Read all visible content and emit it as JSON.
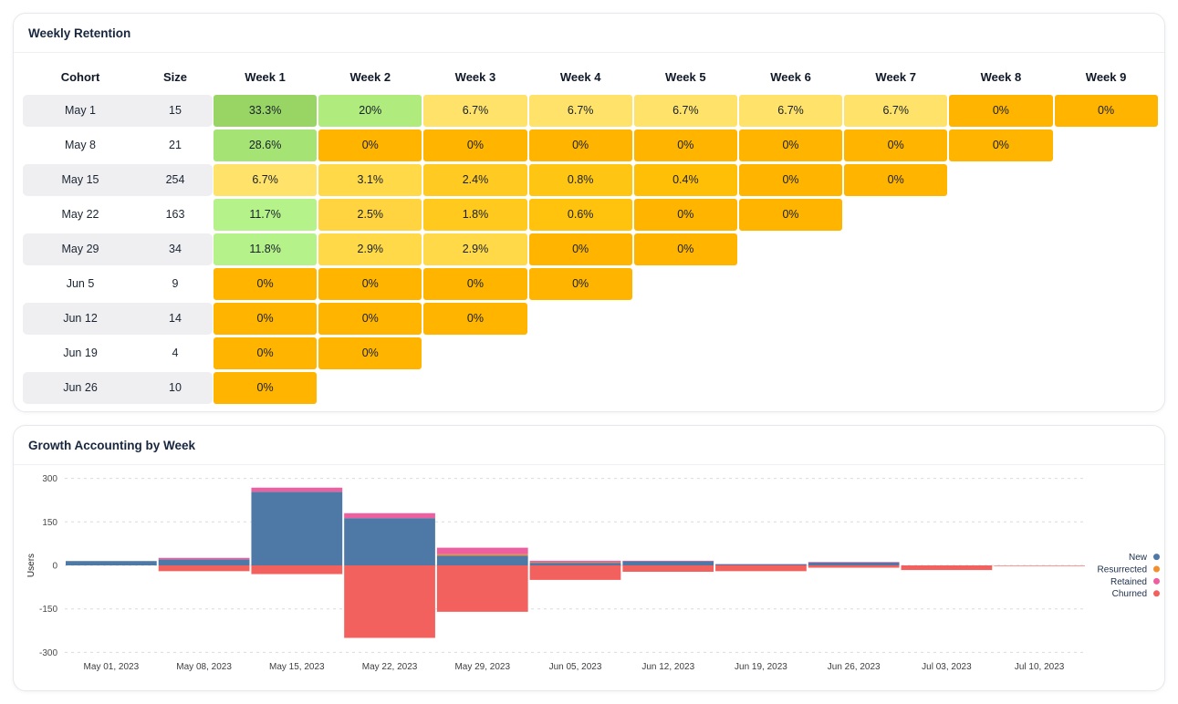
{
  "retention_panel": {
    "title": "Weekly Retention"
  },
  "growth_panel": {
    "title": "Growth Accounting by Week"
  },
  "retention": {
    "columns": [
      "Cohort",
      "Size",
      "Week 1",
      "Week 2",
      "Week 3",
      "Week 4",
      "Week 5",
      "Week 6",
      "Week 7",
      "Week 8",
      "Week 9"
    ],
    "stripe_color": "#EFEFF2",
    "rows": [
      {
        "cohort": "May 1",
        "size": "15",
        "cells": [
          {
            "v": "33.3%",
            "c": "#99D565"
          },
          {
            "v": "20%",
            "c": "#AFEB7D"
          },
          {
            "v": "6.7%",
            "c": "#FFE26A"
          },
          {
            "v": "6.7%",
            "c": "#FFE26A"
          },
          {
            "v": "6.7%",
            "c": "#FFE26A"
          },
          {
            "v": "6.7%",
            "c": "#FFE26A"
          },
          {
            "v": "6.7%",
            "c": "#FFE26A"
          },
          {
            "v": "0%",
            "c": "#FFB400"
          },
          {
            "v": "0%",
            "c": "#FFB400"
          }
        ]
      },
      {
        "cohort": "May 8",
        "size": "21",
        "cells": [
          {
            "v": "28.6%",
            "c": "#A6E375"
          },
          {
            "v": "0%",
            "c": "#FFB400"
          },
          {
            "v": "0%",
            "c": "#FFB400"
          },
          {
            "v": "0%",
            "c": "#FFB400"
          },
          {
            "v": "0%",
            "c": "#FFB400"
          },
          {
            "v": "0%",
            "c": "#FFB400"
          },
          {
            "v": "0%",
            "c": "#FFB400"
          },
          {
            "v": "0%",
            "c": "#FFB400"
          }
        ]
      },
      {
        "cohort": "May 15",
        "size": "254",
        "cells": [
          {
            "v": "6.7%",
            "c": "#FFE26A"
          },
          {
            "v": "3.1%",
            "c": "#FFD948"
          },
          {
            "v": "2.4%",
            "c": "#FFCB22"
          },
          {
            "v": "0.8%",
            "c": "#FFC513"
          },
          {
            "v": "0.4%",
            "c": "#FFBF07"
          },
          {
            "v": "0%",
            "c": "#FFB400"
          },
          {
            "v": "0%",
            "c": "#FFB400"
          }
        ]
      },
      {
        "cohort": "May 22",
        "size": "163",
        "cells": [
          {
            "v": "11.7%",
            "c": "#B6F28A"
          },
          {
            "v": "2.5%",
            "c": "#FFD440"
          },
          {
            "v": "1.8%",
            "c": "#FFC91D"
          },
          {
            "v": "0.6%",
            "c": "#FFC30D"
          },
          {
            "v": "0%",
            "c": "#FFB400"
          },
          {
            "v": "0%",
            "c": "#FFB400"
          }
        ]
      },
      {
        "cohort": "May 29",
        "size": "34",
        "cells": [
          {
            "v": "11.8%",
            "c": "#B6F28A"
          },
          {
            "v": "2.9%",
            "c": "#FFD948"
          },
          {
            "v": "2.9%",
            "c": "#FFD948"
          },
          {
            "v": "0%",
            "c": "#FFB400"
          },
          {
            "v": "0%",
            "c": "#FFB400"
          }
        ]
      },
      {
        "cohort": "Jun 5",
        "size": "9",
        "cells": [
          {
            "v": "0%",
            "c": "#FFB400"
          },
          {
            "v": "0%",
            "c": "#FFB400"
          },
          {
            "v": "0%",
            "c": "#FFB400"
          },
          {
            "v": "0%",
            "c": "#FFB400"
          }
        ]
      },
      {
        "cohort": "Jun 12",
        "size": "14",
        "cells": [
          {
            "v": "0%",
            "c": "#FFB400"
          },
          {
            "v": "0%",
            "c": "#FFB400"
          },
          {
            "v": "0%",
            "c": "#FFB400"
          }
        ]
      },
      {
        "cohort": "Jun 19",
        "size": "4",
        "cells": [
          {
            "v": "0%",
            "c": "#FFB400"
          },
          {
            "v": "0%",
            "c": "#FFB400"
          }
        ]
      },
      {
        "cohort": "Jun 26",
        "size": "10",
        "cells": [
          {
            "v": "0%",
            "c": "#FFB400"
          }
        ]
      }
    ]
  },
  "chart_data": {
    "type": "bar",
    "stacked": true,
    "title": "Growth Accounting by Week",
    "xlabel": "",
    "ylabel": "Users",
    "ylim": [
      -300,
      300
    ],
    "yticks": [
      300,
      150,
      0,
      -150,
      -300
    ],
    "grid": "dashed-horizontal",
    "legend_position": "right",
    "categories": [
      "May 01, 2023",
      "May 08, 2023",
      "May 15, 2023",
      "May 22, 2023",
      "May 29, 2023",
      "Jun 05, 2023",
      "Jun 12, 2023",
      "Jun 19, 2023",
      "Jun 26, 2023",
      "Jul 03, 2023",
      "Jul 10, 2023"
    ],
    "series": [
      {
        "name": "New",
        "color": "#4E79A7",
        "values": [
          15,
          21,
          254,
          163,
          34,
          9,
          14,
          4,
          10,
          0,
          0
        ]
      },
      {
        "name": "Resurrected",
        "color": "#F28E2B",
        "values": [
          0,
          0,
          0,
          0,
          5,
          2,
          0,
          0,
          0,
          0,
          0
        ]
      },
      {
        "name": "Retained",
        "color": "#EE5FA0",
        "values": [
          0,
          5,
          14,
          17,
          22,
          5,
          2,
          1,
          2,
          0,
          0
        ]
      },
      {
        "name": "Churned",
        "color": "#F2615E",
        "values": [
          0,
          -20,
          -30,
          -250,
          -160,
          -50,
          -22,
          -20,
          -8,
          -16,
          -2
        ]
      }
    ]
  }
}
